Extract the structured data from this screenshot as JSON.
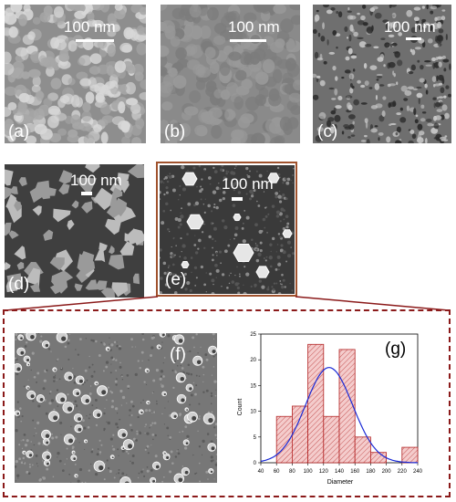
{
  "panels": {
    "a": {
      "letter": "(a)",
      "scale": "100 nm",
      "color": "#8e8e8e"
    },
    "b": {
      "letter": "(b)",
      "scale": "100 nm",
      "color": "#8a8a8a"
    },
    "c": {
      "letter": "(c)",
      "scale": "100 nm",
      "color": "#6f6f6f"
    },
    "d": {
      "letter": "(d)",
      "scale": "100 nm",
      "color": "#4a4a4a"
    },
    "e": {
      "letter": "(e)",
      "scale": "100 nm",
      "color": "#404040"
    },
    "f": {
      "letter": "(f)",
      "color": "#7a7a7a"
    },
    "g": {
      "letter": "(g)"
    }
  },
  "colors": {
    "frame": "#a0522d",
    "dashed": "#8b1a1a",
    "bar_fill": "#f4cccc",
    "bar_stroke": "#b22222",
    "fit_curve": "#1a2ad6"
  },
  "chart_data": {
    "type": "bar",
    "title": "",
    "xlabel": "Diameter",
    "ylabel": "Count",
    "xlim": [
      40,
      240
    ],
    "ylim": [
      0,
      25
    ],
    "xticks": [
      40,
      60,
      80,
      100,
      120,
      140,
      160,
      180,
      200,
      220,
      240
    ],
    "yticks": [
      0,
      5,
      10,
      15,
      20,
      25
    ],
    "bins": [
      {
        "x0": 60,
        "x1": 80,
        "count": 9
      },
      {
        "x0": 80,
        "x1": 100,
        "count": 11
      },
      {
        "x0": 100,
        "x1": 120,
        "count": 23
      },
      {
        "x0": 120,
        "x1": 140,
        "count": 9
      },
      {
        "x0": 140,
        "x1": 160,
        "count": 22
      },
      {
        "x0": 160,
        "x1": 180,
        "count": 5
      },
      {
        "x0": 180,
        "x1": 200,
        "count": 2
      },
      {
        "x0": 200,
        "x1": 220,
        "count": 0
      },
      {
        "x0": 220,
        "x1": 240,
        "count": 3
      }
    ],
    "fit": {
      "type": "gaussian",
      "mean": 127,
      "sigma": 30,
      "peak": 18.5
    }
  }
}
